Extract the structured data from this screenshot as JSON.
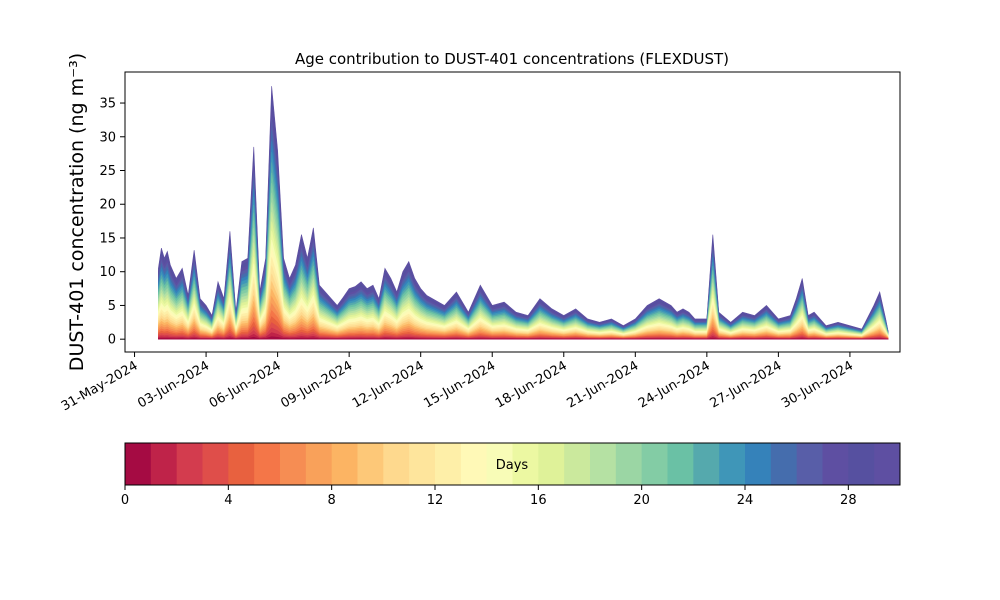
{
  "chart_data": {
    "type": "area",
    "title": "Age contribution to DUST-401 concentrations (FLEXDUST)",
    "ylabel": "DUST-401 concentration (ng m⁻³)",
    "xlabel": "",
    "x_tick_labels": [
      "31-May-2024",
      "03-Jun-2024",
      "06-Jun-2024",
      "09-Jun-2024",
      "12-Jun-2024",
      "15-Jun-2024",
      "18-Jun-2024",
      "21-Jun-2024",
      "24-Jun-2024",
      "27-Jun-2024",
      "30-Jun-2024"
    ],
    "y_ticks": [
      0,
      5,
      10,
      15,
      20,
      25,
      30,
      35
    ],
    "ylim": [
      -1.9,
      39.6
    ],
    "xlim_days": [
      -0.4,
      32.1
    ],
    "stacking": "cumulative by age (0 to 30 days)",
    "total_concentration_series": {
      "x_day_offsets": [
        1.0,
        1.125,
        1.25,
        1.375,
        1.5,
        1.75,
        2.0,
        2.25,
        2.5,
        2.75,
        3.0,
        3.25,
        3.5,
        3.75,
        4.0,
        4.25,
        4.5,
        4.75,
        5.0,
        5.25,
        5.5,
        5.75,
        6.0,
        6.25,
        6.5,
        6.75,
        7.0,
        7.25,
        7.5,
        7.75,
        8.0,
        8.25,
        8.5,
        8.75,
        9.0,
        9.25,
        9.5,
        9.75,
        10.0,
        10.25,
        10.5,
        10.75,
        11.0,
        11.25,
        11.5,
        11.75,
        12.0,
        12.25,
        12.5,
        13.0,
        13.5,
        14.0,
        14.5,
        15.0,
        15.5,
        16.0,
        16.5,
        17.0,
        17.5,
        18.0,
        18.5,
        19.0,
        19.5,
        20.0,
        20.5,
        21.0,
        21.5,
        22.0,
        22.5,
        22.75,
        23.0,
        23.25,
        23.5,
        24.0,
        24.25,
        24.5,
        25.0,
        25.5,
        26.0,
        26.5,
        27.0,
        27.5,
        27.75,
        28.0,
        28.25,
        28.5,
        29.0,
        29.5,
        30.0,
        30.5,
        31.0,
        31.25,
        31.5,
        31.6
      ],
      "note": "x offsets in days from 31-May-2024 00:00",
      "values": [
        10.5,
        13.5,
        12,
        13,
        11,
        9,
        10.5,
        6.5,
        13.2,
        6,
        5,
        3.5,
        8.5,
        6,
        16,
        4,
        11.5,
        12,
        28.5,
        7,
        12,
        37.5,
        28,
        12,
        9,
        11,
        15.5,
        12,
        16.5,
        8,
        7,
        6,
        5,
        6.2,
        7.5,
        7.8,
        8.5,
        7.5,
        8,
        6,
        10.5,
        9,
        7,
        10,
        11.5,
        9,
        7.5,
        6.5,
        6,
        5,
        7,
        4,
        8,
        5,
        5.5,
        4,
        3.5,
        6,
        4.5,
        3.5,
        4.5,
        3,
        2.5,
        3,
        2,
        3,
        5,
        6,
        5,
        4,
        4.5,
        4,
        3,
        3,
        15.5,
        4,
        2.5,
        4,
        3.5,
        5,
        3,
        3.5,
        6,
        9,
        3.5,
        4,
        2,
        2.5,
        2,
        1.5,
        5,
        7,
        3,
        1.2
      ]
    },
    "colorbar": {
      "label": "Days",
      "orientation": "horizontal",
      "range": [
        0,
        30
      ],
      "ticks": [
        0,
        4,
        8,
        12,
        16,
        20,
        24,
        28
      ],
      "colormap": "Spectral",
      "n_levels": 30
    },
    "colors": [
      "#a50b43",
      "#bf2349",
      "#d33c4e",
      "#df4e4a",
      "#e8613f",
      "#f47648",
      "#f68d53",
      "#f9a15a",
      "#fcb463",
      "#fdc878",
      "#fed98e",
      "#fee59c",
      "#feefa8",
      "#fff9b7",
      "#f8fcb7",
      "#ecf8a2",
      "#dff299",
      "#cbe99d",
      "#b5e1a3",
      "#9bd6a4",
      "#83cca5",
      "#6ac1a5",
      "#55a9ad",
      "#3f96b8",
      "#3582ba",
      "#456dad",
      "#585ea8",
      "#5e4fa2",
      "#5650a0",
      "#5e4fa2"
    ],
    "grid": false,
    "legend": "none"
  }
}
